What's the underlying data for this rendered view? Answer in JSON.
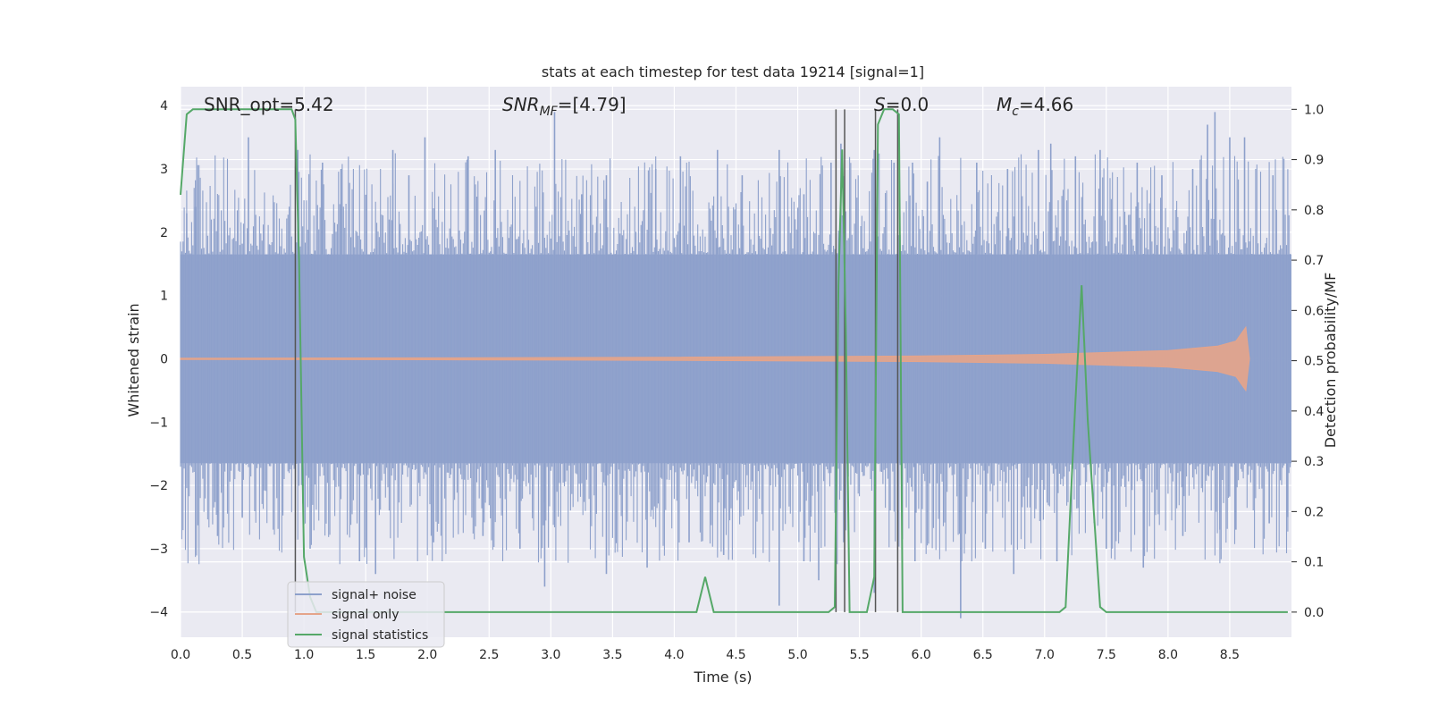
{
  "chart_data": {
    "type": "line",
    "title": "stats at each timestep for test data 19214 [signal=1]",
    "xlabel": "Time (s)",
    "ylabel": "Whitened strain",
    "ylabel_right": "Detection probability/MF",
    "xlim": [
      0.0,
      9.0
    ],
    "ylim": [
      -4.4,
      4.3
    ],
    "ylim_right": [
      -0.05,
      1.045
    ],
    "x_ticks": [
      "0.0",
      "0.5",
      "1.0",
      "1.5",
      "2.0",
      "2.5",
      "3.0",
      "3.5",
      "4.0",
      "4.5",
      "5.0",
      "5.5",
      "6.0",
      "6.5",
      "7.0",
      "7.5",
      "8.0",
      "8.5"
    ],
    "y_ticks": [
      "4",
      "3",
      "2",
      "1",
      "0",
      "−1",
      "−2",
      "−3",
      "−4"
    ],
    "y_ticks_right": [
      "1.0",
      "0.9",
      "0.8",
      "0.7",
      "0.6",
      "0.5",
      "0.4",
      "0.3",
      "0.2",
      "0.1",
      "0.0"
    ],
    "grid": true,
    "legend_position": "lower-left",
    "annotations": {
      "snr_opt": "SNR_opt=5.42",
      "snr_mf_main": "SNR",
      "snr_mf_sub": "MF",
      "snr_mf_val": "=[4.79]",
      "s_stat_main": "S",
      "s_stat_val": "=0.0",
      "mc_main": "M",
      "mc_sub": "c",
      "mc_val": "=4.66"
    },
    "series": [
      {
        "name": "signal+ noise",
        "color": "#8da0cb",
        "description_type": "noise",
        "peaks": [
          [
            0.05,
            2.3
          ],
          [
            0.12,
            2.4
          ],
          [
            0.55,
            3.5
          ],
          [
            0.95,
            3.3
          ],
          [
            1.15,
            3.1
          ],
          [
            1.3,
            3.0
          ],
          [
            1.72,
            3.3
          ],
          [
            1.85,
            2.9
          ],
          [
            1.98,
            3.5
          ],
          [
            2.33,
            3.2
          ],
          [
            2.55,
            3.3
          ],
          [
            3.03,
            3.9
          ],
          [
            3.25,
            2.6
          ],
          [
            3.45,
            2.9
          ],
          [
            3.85,
            3.0
          ],
          [
            4.05,
            3.2
          ],
          [
            4.35,
            3.3
          ],
          [
            4.55,
            2.9
          ],
          [
            4.85,
            3.3
          ],
          [
            5.05,
            2.6
          ],
          [
            5.27,
            3.1
          ],
          [
            5.35,
            3.4
          ],
          [
            5.62,
            3.3
          ],
          [
            5.78,
            3.1
          ],
          [
            5.93,
            3.1
          ],
          [
            6.05,
            2.8
          ],
          [
            6.15,
            3.5
          ],
          [
            6.45,
            3.1
          ],
          [
            6.7,
            3.0
          ],
          [
            6.95,
            3.3
          ],
          [
            7.05,
            3.4
          ],
          [
            7.25,
            3.2
          ],
          [
            7.45,
            3.3
          ],
          [
            7.75,
            3.1
          ],
          [
            7.95,
            2.9
          ],
          [
            8.2,
            3.0
          ],
          [
            8.32,
            3.7
          ],
          [
            8.38,
            3.9
          ],
          [
            8.5,
            3.5
          ],
          [
            8.62,
            3.5
          ],
          [
            8.85,
            2.9
          ]
        ],
        "troughs": [
          [
            0.3,
            -2.8
          ],
          [
            0.5,
            -2.5
          ],
          [
            1.05,
            -3.0
          ],
          [
            1.45,
            -3.2
          ],
          [
            1.58,
            -3.4
          ],
          [
            2.05,
            -2.9
          ],
          [
            2.45,
            -2.8
          ],
          [
            2.75,
            -3.0
          ],
          [
            2.95,
            -3.6
          ],
          [
            3.45,
            -3.4
          ],
          [
            3.78,
            -3.3
          ],
          [
            4.12,
            -2.9
          ],
          [
            4.4,
            -3.1
          ],
          [
            4.85,
            -3.9
          ],
          [
            5.05,
            -3.2
          ],
          [
            5.17,
            -3.5
          ],
          [
            5.62,
            -3.7
          ],
          [
            5.95,
            -3.2
          ],
          [
            6.32,
            -4.1
          ],
          [
            6.52,
            -3.0
          ],
          [
            6.75,
            -3.4
          ],
          [
            7.1,
            -3.2
          ],
          [
            7.5,
            -3.0
          ],
          [
            7.8,
            -3.3
          ],
          [
            8.12,
            -2.8
          ],
          [
            8.42,
            -2.7
          ],
          [
            8.55,
            -2.7
          ],
          [
            8.82,
            -2.6
          ],
          [
            8.97,
            -2.5
          ]
        ],
        "band_abs": 1.65
      },
      {
        "name": "signal only",
        "color": "#e5a48a",
        "envelope": [
          [
            0.0,
            0.01
          ],
          [
            2.0,
            0.015
          ],
          [
            4.0,
            0.025
          ],
          [
            6.0,
            0.045
          ],
          [
            7.0,
            0.07
          ],
          [
            8.0,
            0.13
          ],
          [
            8.4,
            0.2
          ],
          [
            8.55,
            0.28
          ],
          [
            8.63,
            0.5
          ],
          [
            8.66,
            0.0
          ]
        ]
      },
      {
        "name": "signal statistics",
        "color": "#55a868",
        "axis": "right",
        "x": [
          0.0,
          0.05,
          0.1,
          0.85,
          0.9,
          0.93,
          0.96,
          1.0,
          1.05,
          1.1,
          1.15,
          4.1,
          4.18,
          4.25,
          4.32,
          4.4,
          5.25,
          5.3,
          5.33,
          5.36,
          5.39,
          5.42,
          5.47,
          5.56,
          5.62,
          5.65,
          5.7,
          5.77,
          5.82,
          5.85,
          5.88,
          7.12,
          7.17,
          7.25,
          7.3,
          7.35,
          7.45,
          7.5,
          7.55,
          8.97
        ],
        "values": [
          0.83,
          0.99,
          1.0,
          1.0,
          1.0,
          0.98,
          0.7,
          0.11,
          0.03,
          0.0,
          0.0,
          0.0,
          0.0,
          0.07,
          0.0,
          0.0,
          0.0,
          0.01,
          0.65,
          0.92,
          0.56,
          0.0,
          0.0,
          0.0,
          0.07,
          0.97,
          1.0,
          1.0,
          0.99,
          0.0,
          0.0,
          0.0,
          0.01,
          0.42,
          0.65,
          0.38,
          0.01,
          0.0,
          0.0,
          0.0
        ]
      }
    ],
    "vertical_lines_x": [
      0.93,
      5.31,
      5.38,
      5.63,
      5.81
    ]
  }
}
